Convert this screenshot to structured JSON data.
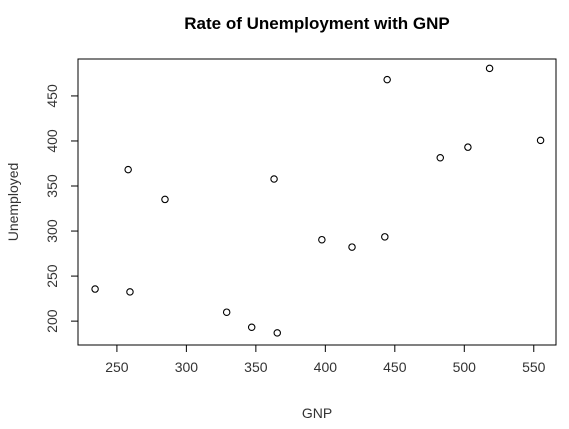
{
  "chart_data": {
    "type": "scatter",
    "title": "Rate of Unemployment with GNP",
    "xlabel": "GNP",
    "ylabel": "Unemployed",
    "xlim": [
      222,
      566
    ],
    "ylim": [
      173.5,
      491
    ],
    "xticks": [
      250,
      300,
      350,
      400,
      450,
      500,
      550
    ],
    "yticks": [
      200,
      250,
      300,
      350,
      400,
      450
    ],
    "grid": false,
    "marker": "open-circle",
    "colors": {
      "points": "#000000",
      "frame": "#000000",
      "text": "#333333",
      "background": "#ffffff"
    },
    "points": [
      {
        "x": 234.3,
        "y": 235.6
      },
      {
        "x": 259.4,
        "y": 232.5
      },
      {
        "x": 258.1,
        "y": 368.2
      },
      {
        "x": 284.6,
        "y": 335.1
      },
      {
        "x": 329.0,
        "y": 209.9
      },
      {
        "x": 347.0,
        "y": 193.2
      },
      {
        "x": 365.4,
        "y": 187.0
      },
      {
        "x": 363.1,
        "y": 357.8
      },
      {
        "x": 397.5,
        "y": 290.4
      },
      {
        "x": 419.2,
        "y": 282.2
      },
      {
        "x": 442.8,
        "y": 293.6
      },
      {
        "x": 444.5,
        "y": 468.1
      },
      {
        "x": 482.7,
        "y": 381.4
      },
      {
        "x": 502.6,
        "y": 393.1
      },
      {
        "x": 518.2,
        "y": 480.6
      },
      {
        "x": 554.9,
        "y": 400.7
      }
    ]
  }
}
